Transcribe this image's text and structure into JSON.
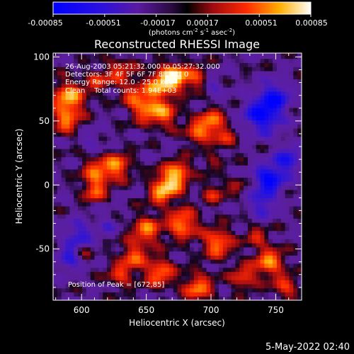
{
  "colorbar": {
    "tick_labels": [
      "-0.00085",
      "-0.00051",
      "-0.00017",
      "0.00017",
      "0.00051",
      "0.00085"
    ],
    "units_prefix": "(photons cm",
    "units_exp1": "-2",
    "units_mid": " s",
    "units_exp2": "-1",
    "units_mid2": " asec",
    "units_exp3": "-2",
    "units_suffix": ")"
  },
  "chart_data": {
    "type": "heatmap",
    "title": "Reconstructed RHESSI Image",
    "xlabel": "Heliocentric X (arcsec)",
    "ylabel": "Heliocentric Y (arcsec)",
    "xlim": [
      578,
      770
    ],
    "ylim": [
      -90,
      103
    ],
    "x_ticks": [
      600,
      650,
      700,
      750
    ],
    "y_ticks": [
      -50,
      0,
      50,
      100
    ],
    "x_tick_labels": [
      "600",
      "650",
      "700",
      "750"
    ],
    "y_tick_labels": [
      "-50",
      "0",
      "50",
      "100"
    ],
    "colorbar_range": [
      -0.00085,
      0.00085
    ],
    "peak_position": [
      672,
      85
    ],
    "info_lines": [
      "26-Aug-2003 05:21:32.000 to 05:27:32.000",
      "Detectors: 3F 4F 5F 6F 7F 8F, Att 0",
      "Energy Range: 12.0 - 25.0 keV",
      "Clean    Total counts: 1.94E+03"
    ],
    "peak_label": "Position of Peak = [672,85]",
    "colors": {
      "low": "#0000ff",
      "mid": "#7a2aa8",
      "zero": "#000000",
      "high": "#ff3a00",
      "max": "#ffffff"
    }
  },
  "footer": {
    "timestamp": "5-May-2022 02:40"
  }
}
